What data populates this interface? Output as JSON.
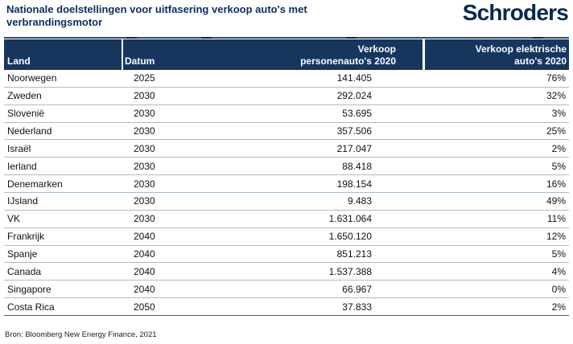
{
  "title": "Nationale doelstellingen voor uitfasering verkoop auto's met verbrandingsmotor",
  "logo": "Schroders",
  "source": "Bron: Bloomberg New Energy Finance, 2021",
  "colors": {
    "brand_navy": "#04294f",
    "title_navy": "#0b2e5c",
    "header_bg": "#16365e",
    "row_divider": "#a9bcca",
    "bottom_border": "#3d5c82"
  },
  "table": {
    "headers": [
      {
        "line1": "Land"
      },
      {
        "line1": "Datum"
      },
      {
        "line1": "Verkoop",
        "line2": "personenauto's 2020"
      },
      {
        "line1": "Verkoop elektrische",
        "line2": "auto's 2020"
      }
    ],
    "rows": [
      {
        "land": "Noorwegen",
        "datum": "2025",
        "verkoop": "141.405",
        "ev": "76%"
      },
      {
        "land": "Zweden",
        "datum": "2030",
        "verkoop": "292.024",
        "ev": "32%"
      },
      {
        "land": "Slovenië",
        "datum": "2030",
        "verkoop": "53.695",
        "ev": "3%"
      },
      {
        "land": "Nederland",
        "datum": "2030",
        "verkoop": "357.506",
        "ev": "25%"
      },
      {
        "land": "Israël",
        "datum": "2030",
        "verkoop": "217.047",
        "ev": "2%"
      },
      {
        "land": "Ierland",
        "datum": "2030",
        "verkoop": "88.418",
        "ev": "5%"
      },
      {
        "land": "Denemarken",
        "datum": "2030",
        "verkoop": "198.154",
        "ev": "16%"
      },
      {
        "land": "IJsland",
        "datum": "2030",
        "verkoop": "9.483",
        "ev": "49%"
      },
      {
        "land": "VK",
        "datum": "2030",
        "verkoop": "1.631.064",
        "ev": "11%"
      },
      {
        "land": "Frankrijk",
        "datum": "2040",
        "verkoop": "1.650.120",
        "ev": "12%"
      },
      {
        "land": "Spanje",
        "datum": "2040",
        "verkoop": "851.213",
        "ev": "5%"
      },
      {
        "land": "Canada",
        "datum": "2040",
        "verkoop": "1.537.388",
        "ev": "4%"
      },
      {
        "land": "Singapore",
        "datum": "2040",
        "verkoop": "66.967",
        "ev": "0%"
      },
      {
        "land": "Costa Rica",
        "datum": "2050",
        "verkoop": "37.833",
        "ev": "2%"
      }
    ]
  },
  "chart_data": {
    "type": "table",
    "title": "Nationale doelstellingen voor uitfasering verkoop auto's met verbrandingsmotor",
    "columns": [
      "Land",
      "Datum",
      "Verkoop personenauto's 2020",
      "Verkoop elektrische auto's 2020"
    ],
    "rows": [
      [
        "Noorwegen",
        "2025",
        "141.405",
        "76%"
      ],
      [
        "Zweden",
        "2030",
        "292.024",
        "32%"
      ],
      [
        "Slovenië",
        "2030",
        "53.695",
        "3%"
      ],
      [
        "Nederland",
        "2030",
        "357.506",
        "25%"
      ],
      [
        "Israël",
        "2030",
        "217.047",
        "2%"
      ],
      [
        "Ierland",
        "2030",
        "88.418",
        "5%"
      ],
      [
        "Denemarken",
        "2030",
        "198.154",
        "16%"
      ],
      [
        "IJsland",
        "2030",
        "9.483",
        "49%"
      ],
      [
        "VK",
        "2030",
        "1.631.064",
        "11%"
      ],
      [
        "Frankrijk",
        "2040",
        "1.650.120",
        "12%"
      ],
      [
        "Spanje",
        "2040",
        "851.213",
        "5%"
      ],
      [
        "Canada",
        "2040",
        "1.537.388",
        "4%"
      ],
      [
        "Singapore",
        "2040",
        "66.967",
        "0%"
      ],
      [
        "Costa Rica",
        "2050",
        "37.833",
        "2%"
      ]
    ],
    "source": "Bron: Bloomberg New Energy Finance, 2021"
  }
}
